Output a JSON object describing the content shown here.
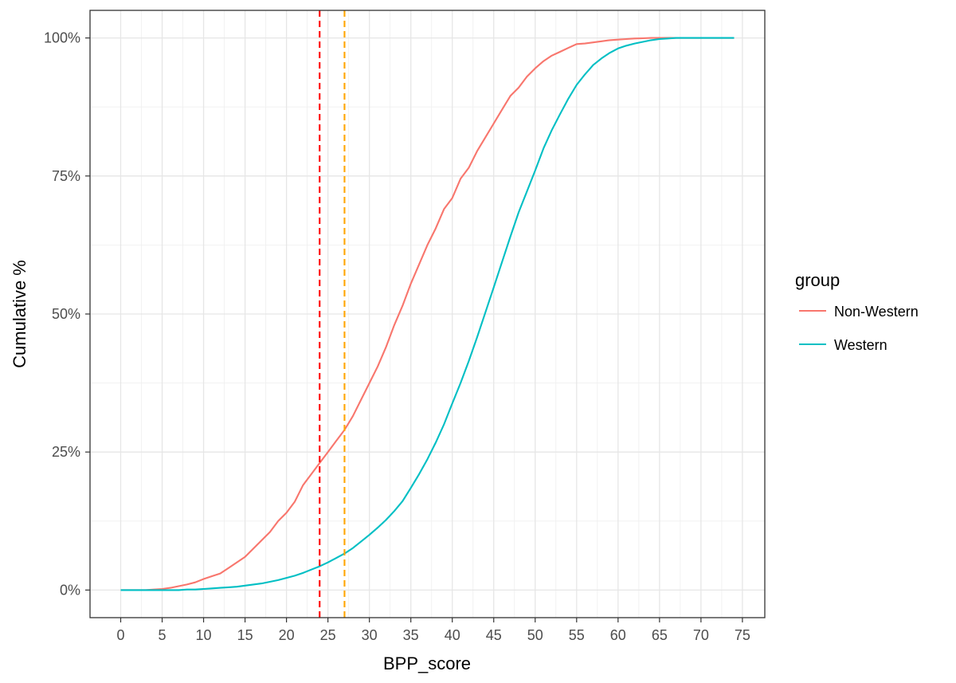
{
  "chart_data": {
    "type": "line",
    "title": "",
    "xlabel": "BPP_score",
    "ylabel": "Cumulative %",
    "xlim": [
      -3.7,
      77.7
    ],
    "ylim": [
      -0.05,
      1.05
    ],
    "x_ticks": [
      0,
      5,
      10,
      15,
      20,
      25,
      30,
      35,
      40,
      45,
      50,
      55,
      60,
      65,
      70,
      75
    ],
    "x_tick_labels": [
      "0",
      "5",
      "10",
      "15",
      "20",
      "25",
      "30",
      "35",
      "40",
      "45",
      "50",
      "55",
      "60",
      "65",
      "70",
      "75"
    ],
    "y_ticks": [
      0,
      0.25,
      0.5,
      0.75,
      1.0
    ],
    "y_tick_labels": [
      "0%",
      "25%",
      "50%",
      "75%",
      "100%"
    ],
    "grid": true,
    "legend": {
      "title": "group",
      "position": "right",
      "entries": [
        {
          "name": "Non-Western",
          "color": "#F8766D"
        },
        {
          "name": "Western",
          "color": "#00BFC4"
        }
      ]
    },
    "reference_lines": [
      {
        "x": 24,
        "color": "#FF0000",
        "style": "dashed"
      },
      {
        "x": 27,
        "color": "#FFA500",
        "style": "dashed"
      }
    ],
    "series": [
      {
        "name": "Non-Western",
        "color": "#F8766D",
        "x": [
          0,
          3,
          4,
          5,
          6,
          7,
          8,
          9,
          10,
          11,
          12,
          13,
          14,
          15,
          16,
          17,
          18,
          19,
          20,
          21,
          22,
          23,
          24,
          25,
          26,
          27,
          28,
          29,
          30,
          31,
          32,
          33,
          34,
          35,
          36,
          37,
          38,
          39,
          40,
          41,
          42,
          43,
          44,
          45,
          46,
          47,
          48,
          49,
          50,
          51,
          52,
          53,
          54,
          55,
          56,
          57,
          58,
          59,
          60,
          61,
          62,
          63,
          64,
          65,
          66,
          67,
          68,
          69,
          70,
          71,
          72,
          73,
          74
        ],
        "y": [
          0,
          0,
          0.001,
          0.002,
          0.004,
          0.007,
          0.01,
          0.014,
          0.02,
          0.025,
          0.03,
          0.04,
          0.05,
          0.06,
          0.075,
          0.09,
          0.105,
          0.125,
          0.14,
          0.16,
          0.19,
          0.21,
          0.23,
          0.25,
          0.27,
          0.29,
          0.315,
          0.345,
          0.375,
          0.405,
          0.44,
          0.48,
          0.515,
          0.555,
          0.59,
          0.625,
          0.655,
          0.69,
          0.71,
          0.745,
          0.765,
          0.795,
          0.82,
          0.845,
          0.87,
          0.895,
          0.91,
          0.93,
          0.945,
          0.958,
          0.968,
          0.975,
          0.982,
          0.989,
          0.99,
          0.992,
          0.994,
          0.996,
          0.997,
          0.998,
          0.999,
          0.9995,
          1,
          1,
          1,
          1,
          1,
          1,
          1,
          1,
          1,
          1,
          1
        ]
      },
      {
        "name": "Western",
        "color": "#00BFC4",
        "x": [
          0,
          3,
          4,
          5,
          6,
          7,
          8,
          9,
          10,
          11,
          12,
          13,
          14,
          15,
          16,
          17,
          18,
          19,
          20,
          21,
          22,
          23,
          24,
          25,
          26,
          27,
          28,
          29,
          30,
          31,
          32,
          33,
          34,
          35,
          36,
          37,
          38,
          39,
          40,
          41,
          42,
          43,
          44,
          45,
          46,
          47,
          48,
          49,
          50,
          51,
          52,
          53,
          54,
          55,
          56,
          57,
          58,
          59,
          60,
          61,
          62,
          63,
          64,
          65,
          66,
          67,
          68,
          69,
          70,
          71,
          72,
          73,
          74
        ],
        "y": [
          0,
          0,
          0,
          0,
          0,
          0,
          0.001,
          0.001,
          0.002,
          0.003,
          0.004,
          0.005,
          0.006,
          0.008,
          0.01,
          0.012,
          0.015,
          0.018,
          0.022,
          0.026,
          0.031,
          0.037,
          0.043,
          0.05,
          0.058,
          0.066,
          0.076,
          0.088,
          0.1,
          0.113,
          0.127,
          0.143,
          0.161,
          0.185,
          0.21,
          0.237,
          0.267,
          0.3,
          0.338,
          0.375,
          0.415,
          0.458,
          0.503,
          0.548,
          0.594,
          0.64,
          0.684,
          0.722,
          0.76,
          0.8,
          0.833,
          0.862,
          0.89,
          0.915,
          0.934,
          0.951,
          0.963,
          0.973,
          0.981,
          0.986,
          0.99,
          0.993,
          0.996,
          0.998,
          0.999,
          1,
          1,
          1,
          1,
          1,
          1,
          1,
          1
        ]
      }
    ]
  }
}
